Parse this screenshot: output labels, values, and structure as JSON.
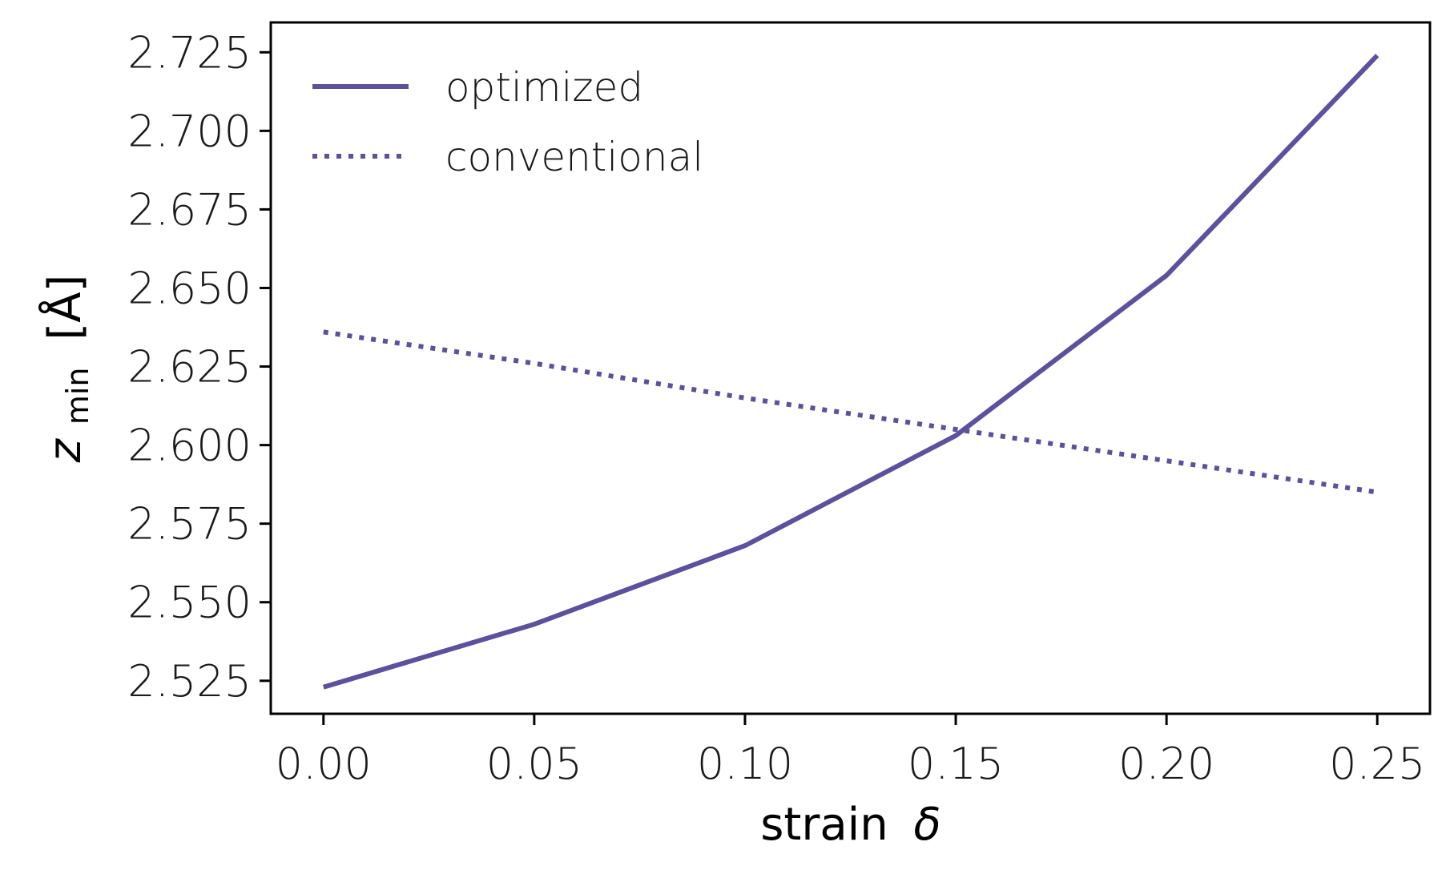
{
  "chart_data": {
    "type": "line",
    "x": [
      0.0,
      0.05,
      0.1,
      0.15,
      0.2,
      0.25
    ],
    "series": [
      {
        "name": "optimized",
        "style": "solid",
        "color": "#5b519e",
        "values": [
          2.523,
          2.543,
          2.568,
          2.603,
          2.654,
          2.724
        ]
      },
      {
        "name": "conventional",
        "style": "dotted",
        "color": "#5b519e",
        "values": [
          2.636,
          2.626,
          2.615,
          2.605,
          2.595,
          2.585
        ]
      }
    ],
    "xlabel_prefix": "strain",
    "xlabel_symbol": "δ",
    "ylabel_main": "z",
    "ylabel_sub": "min",
    "ylabel_unit": "[Å]",
    "xlim": [
      -0.0125,
      0.2625
    ],
    "ylim": [
      2.5145,
      2.7345
    ],
    "xticks": [
      0.0,
      0.05,
      0.1,
      0.15,
      0.2,
      0.25
    ],
    "xtick_labels": [
      "0.00",
      "0.05",
      "0.10",
      "0.15",
      "0.20",
      "0.25"
    ],
    "yticks": [
      2.525,
      2.55,
      2.575,
      2.6,
      2.625,
      2.65,
      2.675,
      2.7,
      2.725
    ],
    "ytick_labels": [
      "2.525",
      "2.550",
      "2.575",
      "2.600",
      "2.625",
      "2.650",
      "2.675",
      "2.700",
      "2.725"
    ],
    "grid": false,
    "legend_position": "top-left"
  }
}
